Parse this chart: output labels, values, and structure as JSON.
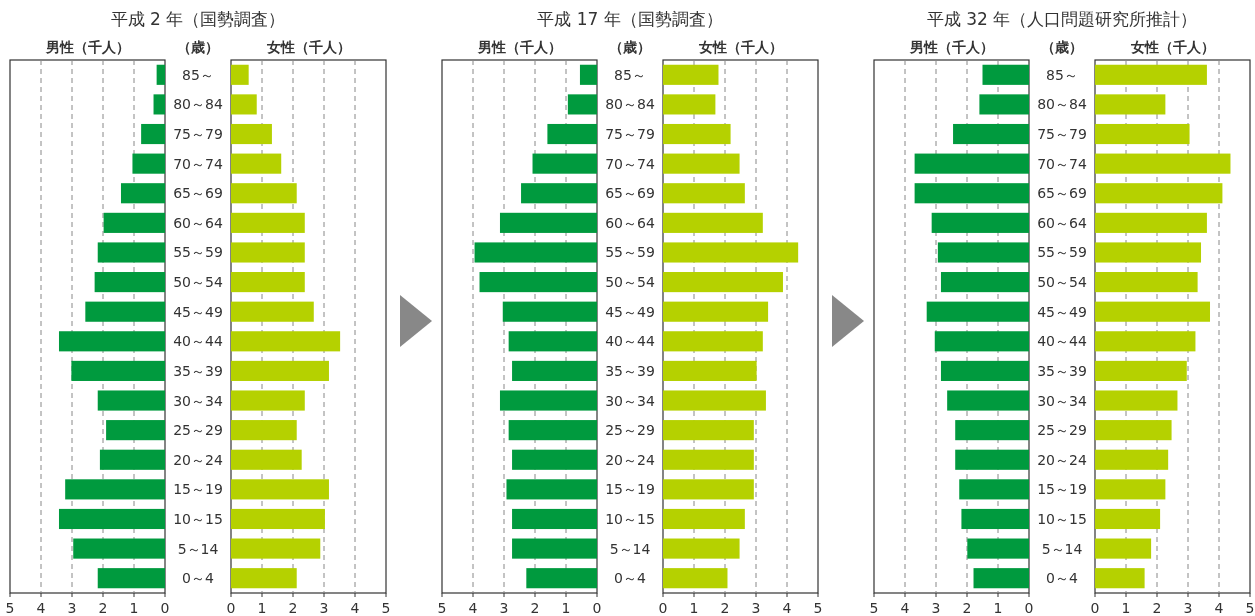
{
  "chart_data": [
    {
      "type": "bar",
      "orientation": "horizontal",
      "title": "平成 2 年（国勢調査）",
      "subtitle": "男性（千人）",
      "ylabel": "（歳）",
      "categories": [
        "85～",
        "80～84",
        "75～79",
        "70～74",
        "65～69",
        "60～64",
        "55～59",
        "50～54",
        "45～49",
        "40～44",
        "35～39",
        "30～34",
        "25～29",
        "20～24",
        "15～19",
        "10～15",
        "5～14",
        "0～4"
      ],
      "values": [
        0.27,
        0.37,
        0.77,
        1.05,
        1.42,
        1.98,
        2.17,
        2.27,
        2.57,
        3.42,
        3.02,
        2.17,
        1.9,
        2.1,
        3.22,
        3.42,
        2.96,
        2.17
      ],
      "color": "#009a3e",
      "xlim": [
        5,
        0
      ],
      "xticks": [
        5,
        4,
        3,
        2,
        1,
        0
      ],
      "grid": "x"
    },
    {
      "type": "bar",
      "orientation": "horizontal",
      "title": "女性（千人）",
      "values": [
        0.57,
        0.83,
        1.32,
        1.62,
        2.12,
        2.38,
        2.38,
        2.38,
        2.67,
        3.52,
        3.16,
        2.38,
        2.12,
        2.28,
        3.16,
        3.03,
        2.88,
        2.12
      ],
      "color": "#b5d100",
      "xlim": [
        0,
        5
      ],
      "xticks": [
        0,
        1,
        2,
        3,
        4,
        5
      ],
      "grid": "x",
      "tick_labels": "x"
    },
    {
      "type": "bar",
      "orientation": "horizontal",
      "title": "平成 17 年（国勢調査）",
      "subtitle": "男性（千人）",
      "ylabel": "（歳）",
      "categories": [
        "85～",
        "80～84",
        "75～79",
        "70～74",
        "65～69",
        "60～64",
        "55～59",
        "50～54",
        "45～49",
        "40～44",
        "35～39",
        "30～34",
        "25～29",
        "20～24",
        "15～19",
        "10～15",
        "5～14",
        "0～4"
      ],
      "values": [
        0.55,
        0.94,
        1.6,
        2.08,
        2.45,
        3.13,
        3.95,
        3.79,
        3.04,
        2.85,
        2.74,
        3.13,
        2.85,
        2.74,
        2.92,
        2.74,
        2.74,
        2.28
      ],
      "color": "#009a3e",
      "xlim": [
        5,
        0
      ],
      "xticks": [
        5,
        4,
        3,
        2,
        1,
        0
      ],
      "grid": "x"
    },
    {
      "type": "bar",
      "orientation": "horizontal",
      "title": "女性（千人）",
      "values": [
        1.79,
        1.69,
        2.18,
        2.47,
        2.64,
        3.22,
        4.36,
        3.87,
        3.39,
        3.22,
        3.02,
        3.32,
        2.93,
        2.93,
        2.93,
        2.64,
        2.47,
        2.08
      ],
      "color": "#b5d100",
      "xlim": [
        0,
        5
      ],
      "xticks": [
        0,
        1,
        2,
        3,
        4,
        5
      ],
      "grid": "x",
      "tick_labels": "x"
    },
    {
      "type": "bar",
      "orientation": "horizontal",
      "title": "平成 32 年（人口問題研究所推計）",
      "subtitle": "男性（千人）",
      "ylabel": "（歳）",
      "categories": [
        "85～",
        "80～84",
        "75～79",
        "70～74",
        "65～69",
        "60～64",
        "55～59",
        "50～54",
        "45～49",
        "40～44",
        "35～39",
        "30～34",
        "25～29",
        "20～24",
        "15～19",
        "10～15",
        "5～14",
        "0～4"
      ],
      "values": [
        1.5,
        1.6,
        2.45,
        3.69,
        3.69,
        3.14,
        2.94,
        2.84,
        3.3,
        3.04,
        2.84,
        2.64,
        2.38,
        2.38,
        2.25,
        2.18,
        1.99,
        1.79
      ],
      "color": "#009a3e",
      "xlim": [
        5,
        0
      ],
      "xticks": [
        5,
        4,
        3,
        2,
        1,
        0
      ],
      "grid": "x"
    },
    {
      "type": "bar",
      "orientation": "horizontal",
      "title": "女性（千人）",
      "values": [
        3.61,
        2.27,
        3.05,
        4.37,
        4.11,
        3.61,
        3.42,
        3.31,
        3.71,
        3.24,
        2.96,
        2.66,
        2.47,
        2.36,
        2.27,
        2.1,
        1.81,
        1.6
      ],
      "color": "#b5d100",
      "xlim": [
        0,
        5
      ],
      "xticks": [
        0,
        1,
        2,
        3,
        4,
        5
      ],
      "grid": "x",
      "tick_labels": "x"
    }
  ]
}
